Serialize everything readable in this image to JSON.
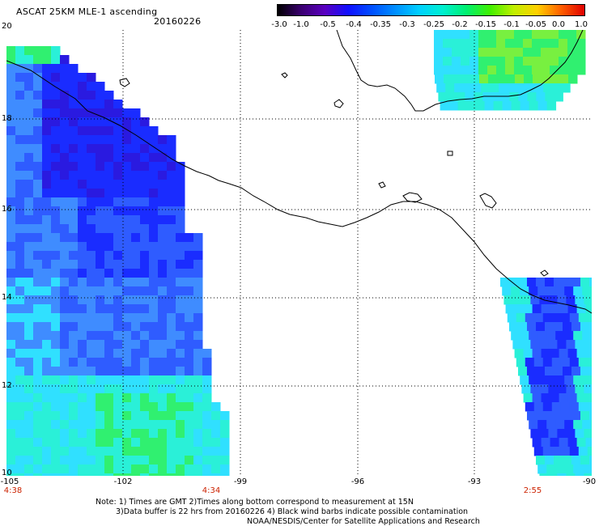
{
  "header": {
    "title": "ASCAT 25KM MLE-1 ascending",
    "date": "20160226"
  },
  "colorbar": {
    "ticks": [
      "-3.0",
      "-1.0",
      "-0.5",
      "-0.4",
      "-0.35",
      "-0.3",
      "-0.25",
      "-0.2",
      "-0.15",
      "-0.1",
      "-0.05",
      "0.0",
      "1.0"
    ],
    "colors": [
      "#000000",
      "#3a0070",
      "#5a00c0",
      "#1010ff",
      "#0050ff",
      "#0090ff",
      "#00d0ff",
      "#00f0d0",
      "#00f070",
      "#40f000",
      "#c0f000",
      "#ffd000",
      "#ff6000",
      "#e00000"
    ]
  },
  "map": {
    "lat_labels": [
      "20",
      "18",
      "16",
      "14",
      "12",
      "10"
    ],
    "lon_labels": [
      "-105",
      "-102",
      "-99",
      "-96",
      "-93",
      "-90"
    ],
    "time_labels": [
      "4:38",
      "4:34",
      "2:55"
    ],
    "swaths": {
      "west": "low values (blue) near coast, higher (green) offshore south",
      "east": "blue core with cyan-green edges",
      "north": "green/cyan over Gulf of Mexico"
    }
  },
  "notes": {
    "line1": "Note: 1) Times are GMT 2)Times along bottom correspond to measurement at 15N",
    "line2": "3)Data buffer is 22 hrs from 20160226 4) Black wind barbs indicate possible contamination",
    "line3": "NOAA/NESDIS/Center for Satellite Applications and Research"
  }
}
